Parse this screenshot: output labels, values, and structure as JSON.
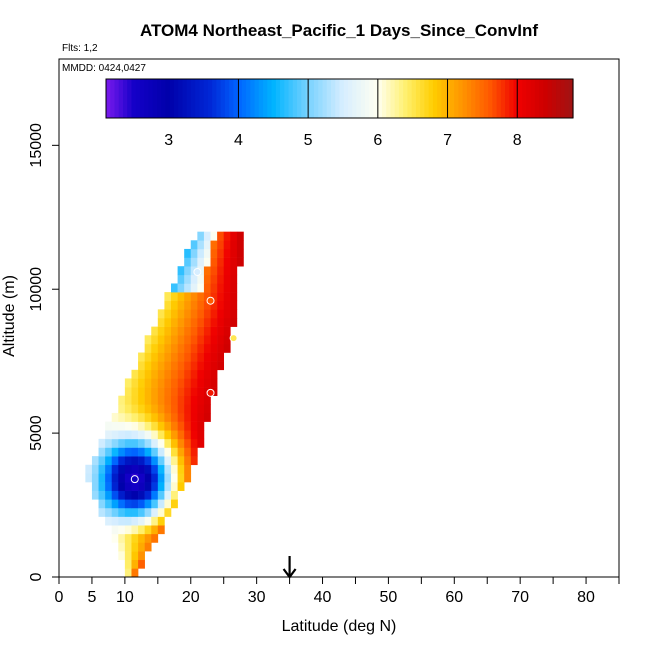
{
  "chart_data": {
    "type": "heatmap",
    "title": "ATOM4 Northeast_Pacific_1 Days_Since_ConvInf",
    "subtitle_flights": "Flts: 1,2",
    "subtitle_dates": "MMDD: 0424,0427",
    "xlabel": "Latitude (deg N)",
    "ylabel": "Altitude (m)",
    "xlim": [
      0,
      85
    ],
    "ylim": [
      0,
      18000
    ],
    "x_ticks": [
      0,
      5,
      10,
      20,
      30,
      40,
      50,
      60,
      70,
      80
    ],
    "x_minor_ticks": [
      15,
      25,
      35,
      45,
      55,
      65,
      75,
      85
    ],
    "y_ticks": [
      0,
      5000,
      10000,
      15000
    ],
    "colorbar": {
      "min": 2.1,
      "max": 8.8,
      "ticks": [
        3,
        4,
        5,
        6,
        7,
        8
      ],
      "boundaries": [
        2.1,
        4,
        5,
        6,
        7,
        8,
        8.8
      ]
    },
    "marker_latitude": 35,
    "points": [
      {
        "lat": 11.5,
        "alt": 3400,
        "value": 2.6
      },
      {
        "lat": 21.0,
        "alt": 10600,
        "value": 5.5
      },
      {
        "lat": 23.0,
        "alt": 9600,
        "value": 7.6
      },
      {
        "lat": 26.5,
        "alt": 8300,
        "value": 6.5
      },
      {
        "lat": 23.0,
        "alt": 6400,
        "value": 7.9
      }
    ]
  }
}
